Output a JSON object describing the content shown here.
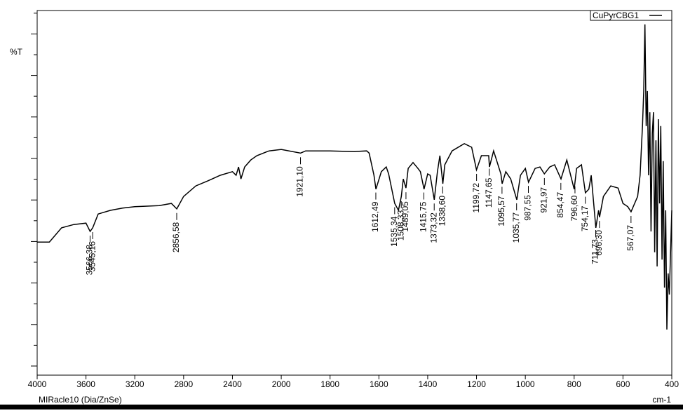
{
  "chart_data": {
    "type": "line",
    "y_label": "%T",
    "x_label": "cm-1",
    "footer": "MIRacle10 (Dia/ZnSe)",
    "xlim": [
      4000,
      400
    ],
    "xticks": [
      4000,
      3600,
      3200,
      2800,
      2400,
      2000,
      1800,
      1600,
      1400,
      1200,
      1000,
      800,
      600,
      400
    ],
    "ylim": [
      0,
      100
    ],
    "series": [
      {
        "name": "CuPyrCBG1",
        "color": "#000000",
        "x": [
          4000,
          3900,
          3800,
          3700,
          3600,
          3566,
          3545,
          3500,
          3400,
          3300,
          3200,
          3000,
          2900,
          2856,
          2800,
          2700,
          2600,
          2500,
          2400,
          2370,
          2350,
          2330,
          2300,
          2250,
          2200,
          2100,
          2000,
          1921,
          1900,
          1800,
          1700,
          1650,
          1640,
          1620,
          1612,
          1590,
          1570,
          1560,
          1535,
          1520,
          1508,
          1500,
          1489,
          1480,
          1460,
          1440,
          1430,
          1415,
          1400,
          1390,
          1373,
          1360,
          1350,
          1338,
          1330,
          1300,
          1250,
          1220,
          1200,
          1180,
          1150,
          1147,
          1130,
          1100,
          1095,
          1080,
          1060,
          1035,
          1020,
          1000,
          987,
          960,
          940,
          922,
          900,
          880,
          854,
          830,
          800,
          790,
          770,
          754,
          740,
          730,
          711,
          700,
          696,
          680,
          650,
          620,
          600,
          580,
          567,
          540,
          530,
          520,
          515,
          510,
          505,
          500,
          495,
          490,
          485,
          480,
          475,
          470,
          465,
          460,
          455,
          450,
          445,
          440,
          435,
          430,
          425,
          420,
          415,
          410,
          400
        ],
        "values": [
          36.5,
          36.5,
          40.4,
          41.3,
          41.7,
          39.4,
          40.4,
          44.2,
          45.2,
          45.8,
          46.2,
          46.5,
          47.1,
          45.6,
          49.0,
          51.9,
          53.3,
          54.8,
          55.8,
          54.8,
          57.1,
          53.8,
          57.1,
          59.0,
          60.2,
          61.5,
          61.9,
          60.9,
          61.5,
          61.5,
          61.3,
          61.5,
          60.9,
          54.8,
          51.0,
          55.8,
          57.1,
          55.2,
          47.1,
          45.2,
          49.0,
          53.8,
          51.3,
          56.7,
          58.3,
          56.7,
          55.8,
          51.0,
          55.2,
          54.8,
          48.1,
          55.8,
          60.2,
          52.5,
          57.7,
          61.5,
          63.5,
          62.5,
          56.3,
          60.2,
          60.2,
          57.1,
          61.5,
          55.2,
          52.5,
          55.8,
          53.8,
          48.1,
          54.8,
          56.7,
          52.9,
          56.7,
          57.1,
          55.2,
          57.1,
          57.7,
          53.8,
          59.0,
          51.0,
          56.7,
          57.7,
          50.0,
          51.0,
          54.8,
          40.4,
          45.2,
          43.3,
          49.0,
          51.9,
          51.3,
          47.1,
          46.2,
          44.8,
          49.0,
          54.8,
          68.3,
          77.9,
          96.2,
          68.3,
          77.9,
          54.8,
          72.1,
          39.4,
          66.3,
          72.1,
          33.7,
          64.4,
          29.8,
          70.2,
          47.1,
          68.3,
          31.7,
          58.7,
          24.0,
          45.2,
          12.5,
          27.9,
          22.1,
          45.2
        ]
      }
    ],
    "annotations": [
      {
        "x": 3566.38,
        "label": "3566,38"
      },
      {
        "x": 3545.16,
        "label": "3545,16"
      },
      {
        "x": 2856.58,
        "label": "2856,58"
      },
      {
        "x": 1921.1,
        "label": "1921,10"
      },
      {
        "x": 1612.49,
        "label": "1612,49"
      },
      {
        "x": 1535.34,
        "label": "1535,34"
      },
      {
        "x": 1508.33,
        "label": "1508,33"
      },
      {
        "x": 1489.05,
        "label": "1489,05"
      },
      {
        "x": 1415.75,
        "label": "1415,75"
      },
      {
        "x": 1373.32,
        "label": "1373,32"
      },
      {
        "x": 1338.6,
        "label": "1338,60"
      },
      {
        "x": 1199.72,
        "label": "1199,72"
      },
      {
        "x": 1147.65,
        "label": "1147,65"
      },
      {
        "x": 1095.57,
        "label": "1095,57"
      },
      {
        "x": 1035.77,
        "label": "1035,77"
      },
      {
        "x": 987.55,
        "label": "987,55"
      },
      {
        "x": 921.97,
        "label": "921,97"
      },
      {
        "x": 854.47,
        "label": "854,47"
      },
      {
        "x": 796.6,
        "label": "796,60"
      },
      {
        "x": 754.17,
        "label": "754,17"
      },
      {
        "x": 711.73,
        "label": "711,73"
      },
      {
        "x": 696.3,
        "label": "696,30"
      },
      {
        "x": 567.07,
        "label": "567,07"
      }
    ],
    "legend": "top-right"
  }
}
